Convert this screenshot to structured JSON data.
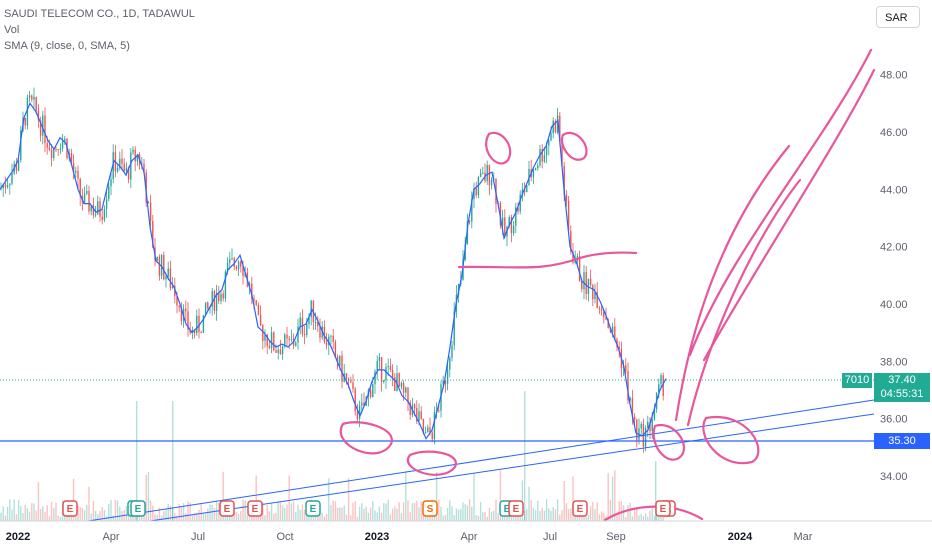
{
  "legend": {
    "symbol": "SAUDI TELECOM CO., 1D, TADAWUL",
    "volume": "Vol",
    "sma": "SMA (9, close, 0, SMA, 5)"
  },
  "currency": "SAR",
  "last_price": {
    "symbol_code": "7010",
    "price": "37.40",
    "countdown": "04:55:31"
  },
  "level_label": "35.30",
  "colors": {
    "up": "#26a69a",
    "down": "#ef5350",
    "sma": "#2962ff",
    "drawing": "#e8579b",
    "line": "#2962ff"
  },
  "chart_data": {
    "type": "line",
    "title": "SAUDI TELECOM CO., 1D, TADAWUL",
    "x_ticks": [
      "2022",
      "Apr",
      "Jul",
      "Oct",
      "2023",
      "Apr",
      "Jul",
      "Sep",
      "2024",
      "Mar"
    ],
    "y_ticks": [
      "48.00",
      "46.00",
      "44.00",
      "42.00",
      "40.00",
      "38.00",
      "36.00",
      "34.00"
    ],
    "ylim": [
      32.5,
      49.5
    ],
    "series": [
      {
        "name": "SMA (9, close, 0, SMA, 5)",
        "x": [
          0,
          6,
          12,
          18,
          24,
          30,
          36,
          42,
          48,
          54,
          60,
          66,
          72,
          78,
          84,
          90,
          96,
          102,
          108,
          114,
          120,
          126,
          132,
          138,
          144,
          150,
          156,
          162,
          168,
          174,
          180,
          186,
          192,
          198,
          204,
          210,
          216,
          222,
          228,
          234,
          240,
          246,
          252,
          258,
          264,
          270,
          276,
          282,
          288,
          294,
          300,
          306,
          312,
          318,
          324,
          330,
          336,
          342,
          348,
          354,
          360,
          366,
          372,
          378,
          384,
          390,
          396,
          402,
          408,
          414,
          420,
          426,
          432,
          438,
          444,
          450,
          456,
          462,
          468,
          474,
          480,
          486,
          492,
          498,
          504,
          510,
          516,
          522,
          528,
          534,
          540,
          546,
          552,
          558,
          564,
          570,
          576,
          582,
          588,
          594,
          600,
          606,
          612,
          618,
          624,
          630,
          636,
          642,
          648,
          654,
          660,
          666
        ],
        "values": [
          44.0,
          44.3,
          44.6,
          45.0,
          46.5,
          47.0,
          46.7,
          46.2,
          45.7,
          45.4,
          45.8,
          45.6,
          44.8,
          44.0,
          43.5,
          43.5,
          43.2,
          43.3,
          44.2,
          45.0,
          44.8,
          44.5,
          45.0,
          45.2,
          44.6,
          42.7,
          41.5,
          41.3,
          40.9,
          40.6,
          40.0,
          39.3,
          39.0,
          39.2,
          39.5,
          39.9,
          40.3,
          40.5,
          41.2,
          41.4,
          41.7,
          41.0,
          40.3,
          39.2,
          39.0,
          38.7,
          38.5,
          38.6,
          38.5,
          38.7,
          39.2,
          39.3,
          39.8,
          39.4,
          38.9,
          38.6,
          38.1,
          37.6,
          37.2,
          36.6,
          36.1,
          36.6,
          37.3,
          37.7,
          37.7,
          37.5,
          37.3,
          36.8,
          36.6,
          36.2,
          35.8,
          35.3,
          35.6,
          36.4,
          37.2,
          38.5,
          40.0,
          41.0,
          42.8,
          44.0,
          44.2,
          44.5,
          44.6,
          43.5,
          42.3,
          42.8,
          43.2,
          43.8,
          44.3,
          44.8,
          45.2,
          45.5,
          46.2,
          46.4,
          44.0,
          42.0,
          41.5,
          40.8,
          40.6,
          40.5,
          40.1,
          39.6,
          39.0,
          38.5,
          37.8,
          36.5,
          35.5,
          35.4,
          35.6,
          36.3,
          37.0,
          37.4
        ]
      }
    ],
    "horizontal_level": 35.3,
    "last_close": 37.4,
    "volume_markers": [
      "E",
      "E",
      "E",
      "E",
      "E",
      "S",
      "E",
      "E",
      "E",
      "E",
      "E",
      "E"
    ],
    "grid": false,
    "legend_position": "top-left"
  }
}
